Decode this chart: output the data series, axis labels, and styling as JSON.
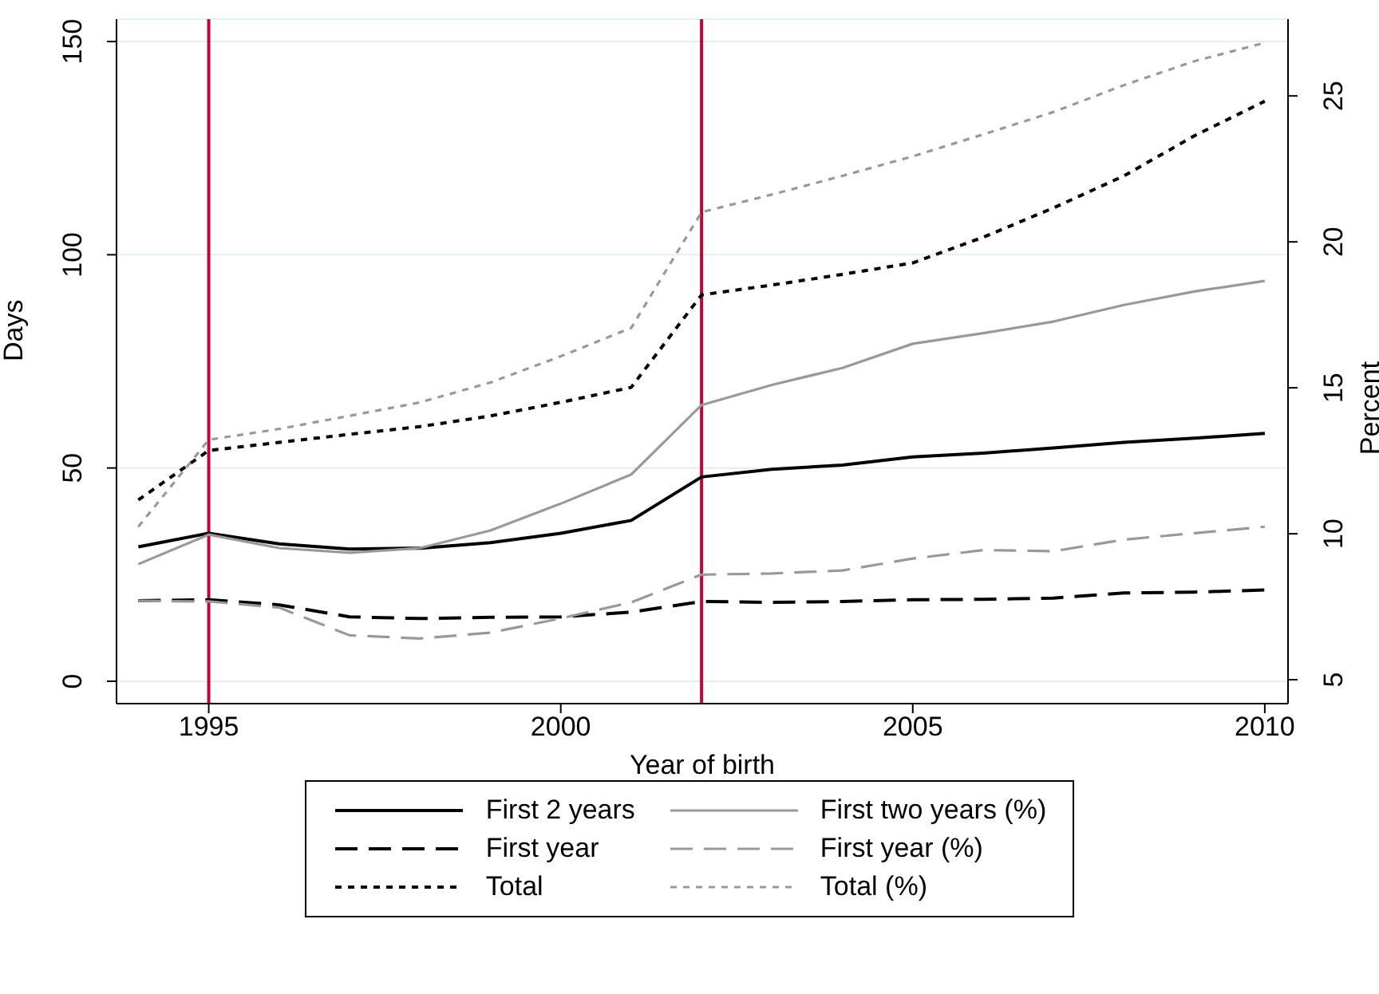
{
  "chart_data": {
    "type": "line",
    "xlabel": "Year of birth",
    "ylabel": "Days",
    "y2label": "Percent",
    "x": [
      1994,
      1995,
      1996,
      1997,
      1998,
      1999,
      2000,
      2001,
      2002,
      2003,
      2004,
      2005,
      2006,
      2007,
      2008,
      2009,
      2010
    ],
    "xlim": [
      1993.69,
      2010.33
    ],
    "xticks": [
      1995,
      2000,
      2005,
      2010
    ],
    "ylim": [
      -5.25,
      155.25
    ],
    "yticks": [
      0,
      50,
      100,
      150
    ],
    "y2lim": [
      4.18,
      27.63
    ],
    "y2ticks": [
      5,
      10,
      15,
      20,
      25
    ],
    "grid": "y",
    "legend": "bottom",
    "marker": "none",
    "series": [
      {
        "name": "First 2 years",
        "color": "#000000",
        "line_style": "solid",
        "values": [
          31.5,
          34.7,
          32.2,
          31,
          31.2,
          32.5,
          34.7,
          37.7,
          47.9,
          49.7,
          50.7,
          52.6,
          53.5,
          54.7,
          56,
          57,
          58.1
        ]
      },
      {
        "name": "First two years (%)",
        "color": "#999999",
        "line_style": "solid",
        "axis": "y2",
        "values": [
          8.96,
          9.97,
          9.51,
          9.35,
          9.51,
          10.11,
          11.03,
          12.03,
          14.41,
          15.1,
          15.68,
          16.51,
          16.87,
          17.27,
          17.84,
          18.3,
          18.66
        ]
      },
      {
        "name": "First year",
        "color": "#000000",
        "line_style": "dashed",
        "values": [
          18.9,
          19.1,
          17.9,
          15.1,
          14.7,
          15,
          15.1,
          16.2,
          18.7,
          18.5,
          18.7,
          19.1,
          19.2,
          19.5,
          20.7,
          20.9,
          21.4
        ]
      },
      {
        "name": "First year (%)",
        "color": "#999999",
        "line_style": "dashed",
        "axis": "y2",
        "values": [
          7.7,
          7.68,
          7.47,
          6.52,
          6.41,
          6.61,
          7.1,
          7.65,
          8.6,
          8.64,
          8.74,
          9.15,
          9.44,
          9.4,
          9.8,
          10.02,
          10.24
        ]
      },
      {
        "name": "Total",
        "color": "#000000",
        "line_style": "dotted",
        "values": [
          42.5,
          54.1,
          56,
          57.9,
          59.7,
          62.2,
          65.4,
          68.9,
          90.6,
          92.9,
          95.4,
          98.1,
          104.1,
          111,
          118.5,
          127.9,
          136
        ]
      },
      {
        "name": "Total (%)",
        "color": "#999999",
        "line_style": "dotted",
        "axis": "y2",
        "values": [
          10.24,
          13.22,
          13.59,
          14.04,
          14.5,
          15.18,
          16.08,
          17.05,
          21.02,
          21.62,
          22.26,
          22.93,
          23.68,
          24.45,
          25.37,
          26.19,
          26.82
        ]
      }
    ],
    "ref_lines": [
      {
        "axis": "x",
        "value": 1995,
        "color": "#c10534"
      },
      {
        "axis": "x",
        "value": 2002,
        "color": "#c10534"
      }
    ]
  }
}
